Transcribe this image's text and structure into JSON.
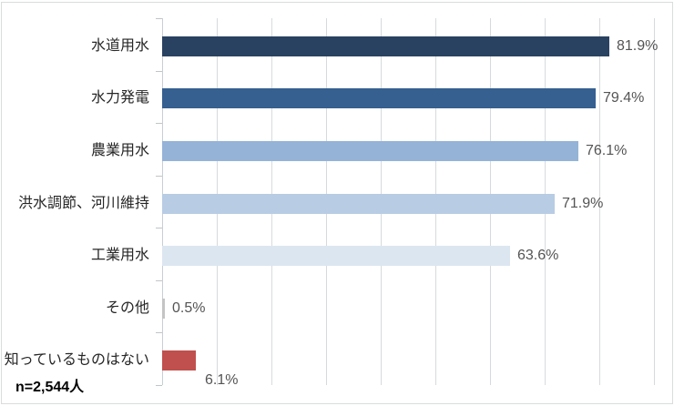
{
  "chart_data": {
    "type": "bar",
    "orientation": "horizontal",
    "title": "",
    "categories": [
      "水道用水",
      "水力発電",
      "農業用水",
      "洪水調節、河川維持",
      "工業用水",
      "その他",
      "知っているものはない"
    ],
    "values": [
      81.9,
      79.4,
      76.1,
      71.9,
      63.6,
      0.5,
      6.1
    ],
    "value_labels": [
      "81.9%",
      "79.4%",
      "76.1%",
      "71.9%",
      "63.6%",
      "0.5%",
      "6.1%"
    ],
    "bar_colors": [
      "#2A4262",
      "#356090",
      "#95B3D7",
      "#B8CCE4",
      "#DCE6F1",
      "#C4C4C4",
      "#C0504D"
    ],
    "value_label_below": [
      false,
      false,
      false,
      false,
      false,
      false,
      true
    ],
    "annotation": "n=2,544人",
    "xlabel": "",
    "ylabel": "",
    "xlim": [
      0,
      93
    ],
    "gridline_step": 10,
    "grid": true,
    "legend": "none"
  },
  "colors": {
    "background": "#FFFFFF",
    "grid": "#D7DADD",
    "axis": "#C9CED2",
    "tick": "#BFC5C9",
    "border": "#D9DBDD",
    "category_label": "#262626",
    "value_label": "#545454",
    "annotation": "#000000"
  }
}
